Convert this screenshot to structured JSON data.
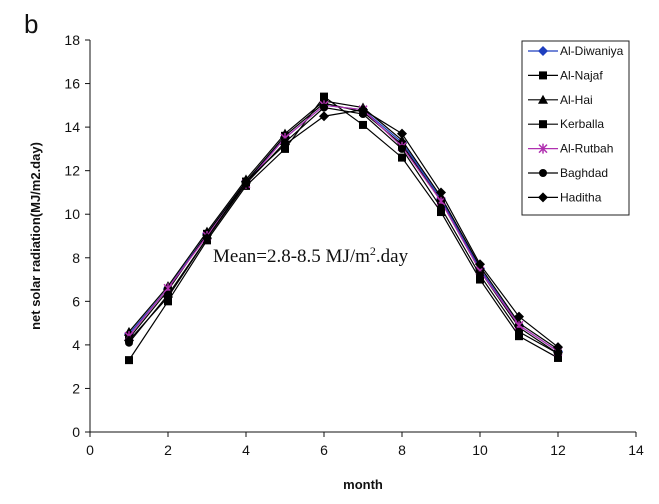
{
  "panel_letter": "b",
  "chart_data": {
    "type": "line",
    "xlabel": "month",
    "ylabel": "net solar radiation(MJ/m2.day)",
    "xlim": [
      0,
      14
    ],
    "ylim": [
      0,
      18
    ],
    "xticks": [
      0,
      2,
      4,
      6,
      8,
      10,
      12,
      14
    ],
    "yticks": [
      0,
      2,
      4,
      6,
      8,
      10,
      12,
      14,
      16,
      18
    ],
    "grid": false,
    "legend_position": "top-right",
    "x": [
      1,
      2,
      3,
      4,
      5,
      6,
      7,
      8,
      9,
      10,
      11,
      12
    ],
    "annotation": {
      "text_before": "Mean=2.8-8.5 MJ/m",
      "superscript": "2",
      "text_after": ".day"
    },
    "series": [
      {
        "name": "Al-Diwaniya",
        "color": "#1f3fbf",
        "marker": "diamond",
        "values": [
          4.5,
          6.6,
          9.1,
          11.5,
          13.5,
          15.0,
          14.8,
          13.3,
          10.7,
          7.5,
          4.9,
          3.7
        ]
      },
      {
        "name": "Al-Najaf",
        "color": "#000000",
        "marker": "square",
        "values": [
          4.3,
          6.5,
          9.1,
          11.5,
          13.6,
          15.1,
          14.7,
          13.2,
          10.6,
          7.4,
          4.8,
          3.6
        ]
      },
      {
        "name": "Al-Hai",
        "color": "#000000",
        "marker": "triangle",
        "values": [
          4.6,
          6.7,
          9.2,
          11.6,
          13.7,
          15.2,
          14.9,
          13.4,
          10.8,
          7.6,
          5.0,
          3.8
        ]
      },
      {
        "name": "Kerballa",
        "color": "#000000",
        "marker": "square",
        "values": [
          3.3,
          6.0,
          8.8,
          11.3,
          13.0,
          15.4,
          14.1,
          12.6,
          10.1,
          7.0,
          4.4,
          3.4
        ]
      },
      {
        "name": "Al-Rutbah",
        "color": "#b030b0",
        "marker": "star",
        "values": [
          4.4,
          6.6,
          9.0,
          11.4,
          13.5,
          15.0,
          14.8,
          13.1,
          10.6,
          7.4,
          4.9,
          3.7
        ]
      },
      {
        "name": "Baghdad",
        "color": "#000000",
        "marker": "circle",
        "values": [
          4.1,
          6.3,
          8.9,
          11.4,
          13.3,
          14.9,
          14.6,
          13.0,
          10.3,
          7.2,
          4.6,
          3.6
        ]
      },
      {
        "name": "Haditha",
        "color": "#000000",
        "marker": "diamond",
        "values": [
          4.2,
          6.2,
          8.9,
          11.5,
          13.2,
          14.5,
          14.8,
          13.7,
          11.0,
          7.7,
          5.3,
          3.9
        ]
      }
    ]
  }
}
